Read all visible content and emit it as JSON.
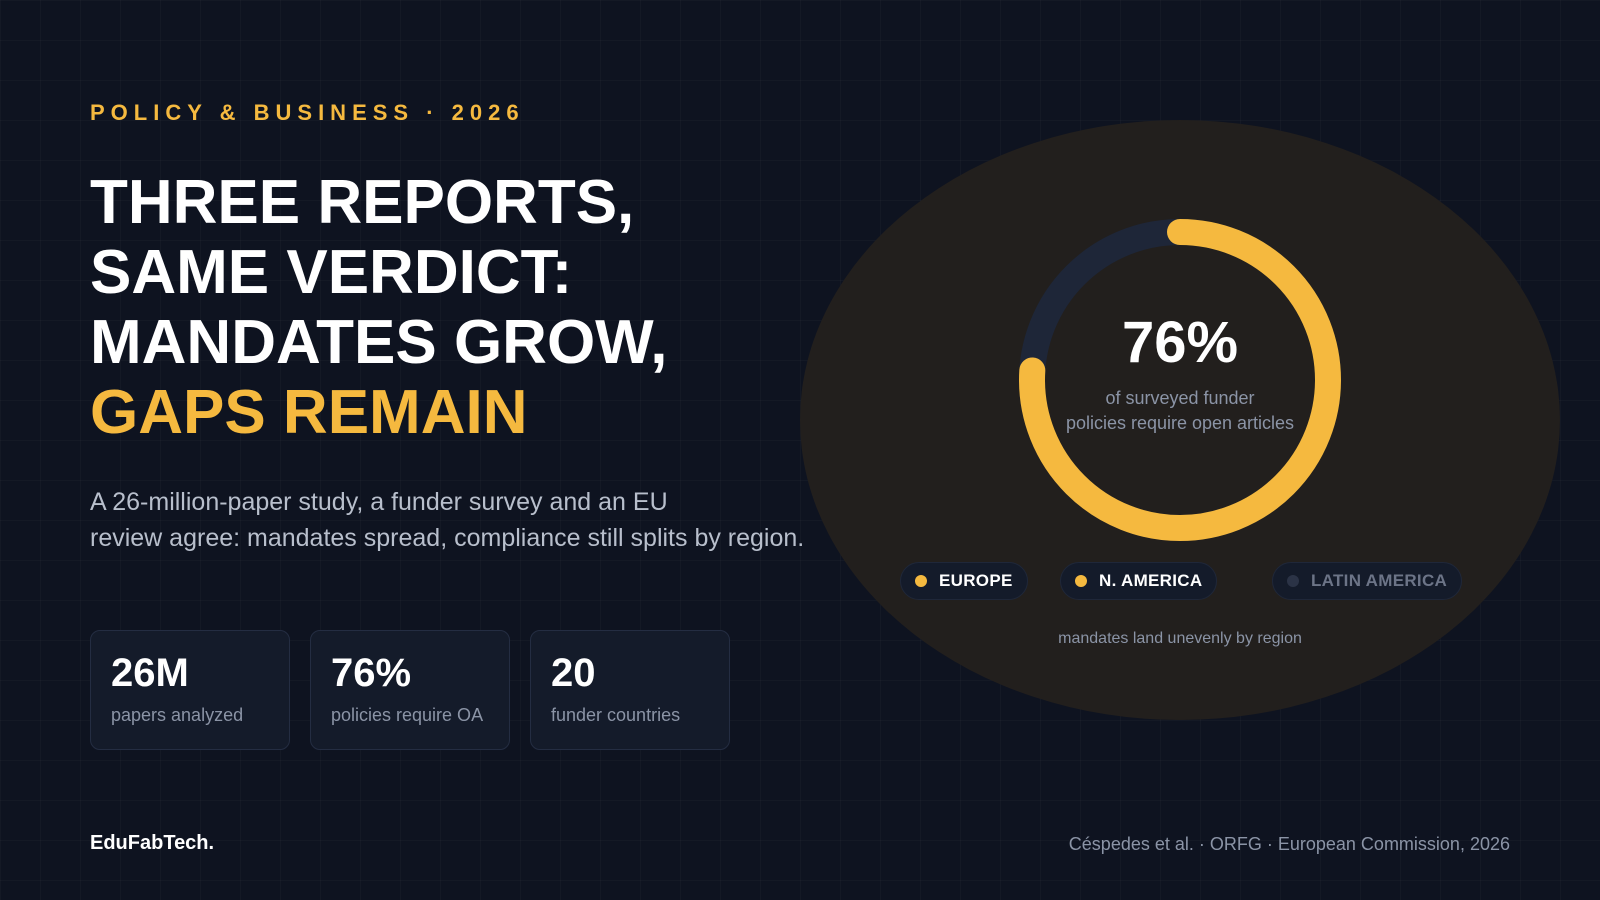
{
  "eyebrow": "POLICY & BUSINESS · 2026",
  "headline": {
    "lines": [
      "THREE REPORTS,",
      "SAME VERDICT:",
      "MANDATES GROW,"
    ],
    "accent": "GAPS REMAIN"
  },
  "subtitle": {
    "lines": [
      "A 26-million-paper study, a funder survey and an EU",
      "review agree: mandates spread, compliance still splits by region."
    ]
  },
  "stats": [
    {
      "value": "26M",
      "label": "papers analyzed"
    },
    {
      "value": "76%",
      "label": "policies require OA"
    },
    {
      "value": "20",
      "label": "funder countries"
    }
  ],
  "chart_data": {
    "type": "pie",
    "value": 76,
    "value_label": "76%",
    "caption_lines": [
      "of surveyed funder",
      "policies require open articles"
    ],
    "legend": [
      {
        "label": "EUROPE",
        "active": true
      },
      {
        "label": "N. AMERICA",
        "active": true
      },
      {
        "label": "LATIN AMERICA",
        "active": false
      }
    ],
    "footnote": "mandates land unevenly by region",
    "colors": {
      "fill": "#f5b93f",
      "track": "#1e2638"
    }
  },
  "brand": "EduFabTech.",
  "credits": "Céspedes et al. · ORFG · European Commission, 2026"
}
